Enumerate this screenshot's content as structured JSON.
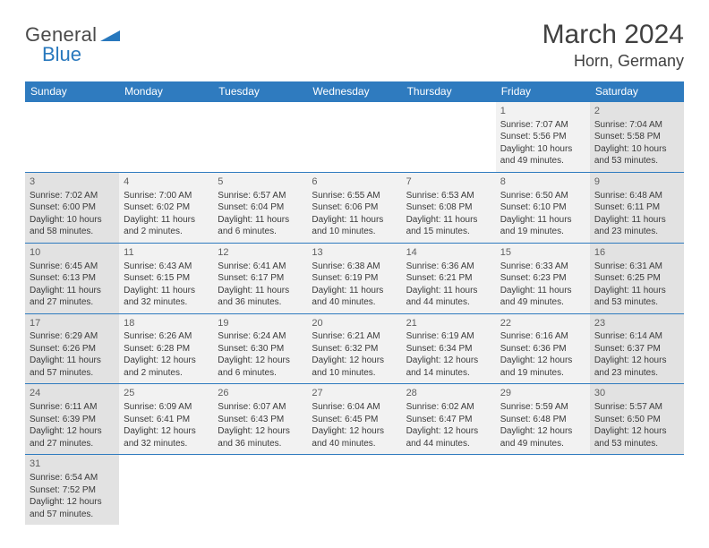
{
  "logo": {
    "general": "General",
    "blue": "Blue"
  },
  "title": {
    "month": "March 2024",
    "location": "Horn, Germany"
  },
  "colors": {
    "header_bg": "#2f7bbf",
    "header_text": "#ffffff",
    "weekend_cell": "#e2e2e2",
    "weekday_cell": "#f2f2f2",
    "border": "#2f7bbf",
    "logo_blue": "#2878bd"
  },
  "weekdays": [
    "Sunday",
    "Monday",
    "Tuesday",
    "Wednesday",
    "Thursday",
    "Friday",
    "Saturday"
  ],
  "weeks": [
    [
      null,
      null,
      null,
      null,
      null,
      {
        "n": "1",
        "sr": "Sunrise: 7:07 AM",
        "ss": "Sunset: 5:56 PM",
        "d1": "Daylight: 10 hours",
        "d2": "and 49 minutes."
      },
      {
        "n": "2",
        "sr": "Sunrise: 7:04 AM",
        "ss": "Sunset: 5:58 PM",
        "d1": "Daylight: 10 hours",
        "d2": "and 53 minutes."
      }
    ],
    [
      {
        "n": "3",
        "sr": "Sunrise: 7:02 AM",
        "ss": "Sunset: 6:00 PM",
        "d1": "Daylight: 10 hours",
        "d2": "and 58 minutes."
      },
      {
        "n": "4",
        "sr": "Sunrise: 7:00 AM",
        "ss": "Sunset: 6:02 PM",
        "d1": "Daylight: 11 hours",
        "d2": "and 2 minutes."
      },
      {
        "n": "5",
        "sr": "Sunrise: 6:57 AM",
        "ss": "Sunset: 6:04 PM",
        "d1": "Daylight: 11 hours",
        "d2": "and 6 minutes."
      },
      {
        "n": "6",
        "sr": "Sunrise: 6:55 AM",
        "ss": "Sunset: 6:06 PM",
        "d1": "Daylight: 11 hours",
        "d2": "and 10 minutes."
      },
      {
        "n": "7",
        "sr": "Sunrise: 6:53 AM",
        "ss": "Sunset: 6:08 PM",
        "d1": "Daylight: 11 hours",
        "d2": "and 15 minutes."
      },
      {
        "n": "8",
        "sr": "Sunrise: 6:50 AM",
        "ss": "Sunset: 6:10 PM",
        "d1": "Daylight: 11 hours",
        "d2": "and 19 minutes."
      },
      {
        "n": "9",
        "sr": "Sunrise: 6:48 AM",
        "ss": "Sunset: 6:11 PM",
        "d1": "Daylight: 11 hours",
        "d2": "and 23 minutes."
      }
    ],
    [
      {
        "n": "10",
        "sr": "Sunrise: 6:45 AM",
        "ss": "Sunset: 6:13 PM",
        "d1": "Daylight: 11 hours",
        "d2": "and 27 minutes."
      },
      {
        "n": "11",
        "sr": "Sunrise: 6:43 AM",
        "ss": "Sunset: 6:15 PM",
        "d1": "Daylight: 11 hours",
        "d2": "and 32 minutes."
      },
      {
        "n": "12",
        "sr": "Sunrise: 6:41 AM",
        "ss": "Sunset: 6:17 PM",
        "d1": "Daylight: 11 hours",
        "d2": "and 36 minutes."
      },
      {
        "n": "13",
        "sr": "Sunrise: 6:38 AM",
        "ss": "Sunset: 6:19 PM",
        "d1": "Daylight: 11 hours",
        "d2": "and 40 minutes."
      },
      {
        "n": "14",
        "sr": "Sunrise: 6:36 AM",
        "ss": "Sunset: 6:21 PM",
        "d1": "Daylight: 11 hours",
        "d2": "and 44 minutes."
      },
      {
        "n": "15",
        "sr": "Sunrise: 6:33 AM",
        "ss": "Sunset: 6:23 PM",
        "d1": "Daylight: 11 hours",
        "d2": "and 49 minutes."
      },
      {
        "n": "16",
        "sr": "Sunrise: 6:31 AM",
        "ss": "Sunset: 6:25 PM",
        "d1": "Daylight: 11 hours",
        "d2": "and 53 minutes."
      }
    ],
    [
      {
        "n": "17",
        "sr": "Sunrise: 6:29 AM",
        "ss": "Sunset: 6:26 PM",
        "d1": "Daylight: 11 hours",
        "d2": "and 57 minutes."
      },
      {
        "n": "18",
        "sr": "Sunrise: 6:26 AM",
        "ss": "Sunset: 6:28 PM",
        "d1": "Daylight: 12 hours",
        "d2": "and 2 minutes."
      },
      {
        "n": "19",
        "sr": "Sunrise: 6:24 AM",
        "ss": "Sunset: 6:30 PM",
        "d1": "Daylight: 12 hours",
        "d2": "and 6 minutes."
      },
      {
        "n": "20",
        "sr": "Sunrise: 6:21 AM",
        "ss": "Sunset: 6:32 PM",
        "d1": "Daylight: 12 hours",
        "d2": "and 10 minutes."
      },
      {
        "n": "21",
        "sr": "Sunrise: 6:19 AM",
        "ss": "Sunset: 6:34 PM",
        "d1": "Daylight: 12 hours",
        "d2": "and 14 minutes."
      },
      {
        "n": "22",
        "sr": "Sunrise: 6:16 AM",
        "ss": "Sunset: 6:36 PM",
        "d1": "Daylight: 12 hours",
        "d2": "and 19 minutes."
      },
      {
        "n": "23",
        "sr": "Sunrise: 6:14 AM",
        "ss": "Sunset: 6:37 PM",
        "d1": "Daylight: 12 hours",
        "d2": "and 23 minutes."
      }
    ],
    [
      {
        "n": "24",
        "sr": "Sunrise: 6:11 AM",
        "ss": "Sunset: 6:39 PM",
        "d1": "Daylight: 12 hours",
        "d2": "and 27 minutes."
      },
      {
        "n": "25",
        "sr": "Sunrise: 6:09 AM",
        "ss": "Sunset: 6:41 PM",
        "d1": "Daylight: 12 hours",
        "d2": "and 32 minutes."
      },
      {
        "n": "26",
        "sr": "Sunrise: 6:07 AM",
        "ss": "Sunset: 6:43 PM",
        "d1": "Daylight: 12 hours",
        "d2": "and 36 minutes."
      },
      {
        "n": "27",
        "sr": "Sunrise: 6:04 AM",
        "ss": "Sunset: 6:45 PM",
        "d1": "Daylight: 12 hours",
        "d2": "and 40 minutes."
      },
      {
        "n": "28",
        "sr": "Sunrise: 6:02 AM",
        "ss": "Sunset: 6:47 PM",
        "d1": "Daylight: 12 hours",
        "d2": "and 44 minutes."
      },
      {
        "n": "29",
        "sr": "Sunrise: 5:59 AM",
        "ss": "Sunset: 6:48 PM",
        "d1": "Daylight: 12 hours",
        "d2": "and 49 minutes."
      },
      {
        "n": "30",
        "sr": "Sunrise: 5:57 AM",
        "ss": "Sunset: 6:50 PM",
        "d1": "Daylight: 12 hours",
        "d2": "and 53 minutes."
      }
    ],
    [
      {
        "n": "31",
        "sr": "Sunrise: 6:54 AM",
        "ss": "Sunset: 7:52 PM",
        "d1": "Daylight: 12 hours",
        "d2": "and 57 minutes."
      },
      null,
      null,
      null,
      null,
      null,
      null
    ]
  ]
}
